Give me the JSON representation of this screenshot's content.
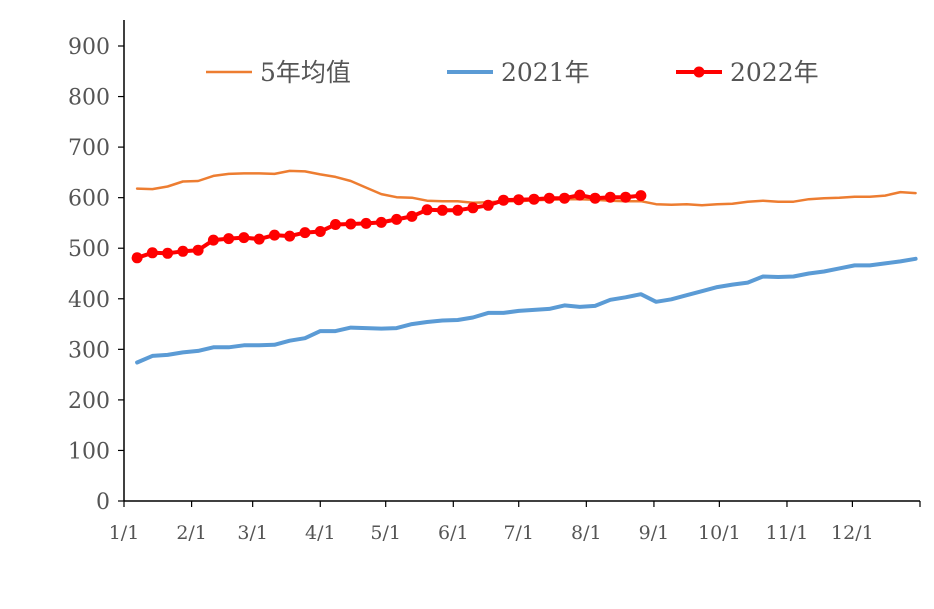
{
  "chart_data": {
    "type": "line",
    "title": "",
    "xlabel": "",
    "ylabel": "",
    "ylim": [
      0,
      900
    ],
    "yticks": [
      0,
      100,
      200,
      300,
      400,
      500,
      600,
      700,
      800,
      900
    ],
    "xlim": [
      0,
      365
    ],
    "xticks": [
      {
        "label": "1/1",
        "day": 0
      },
      {
        "label": "2/1",
        "day": 31
      },
      {
        "label": "3/1",
        "day": 59
      },
      {
        "label": "4/1",
        "day": 90
      },
      {
        "label": "5/1",
        "day": 120
      },
      {
        "label": "6/1",
        "day": 151
      },
      {
        "label": "7/1",
        "day": 181
      },
      {
        "label": "8/1",
        "day": 212
      },
      {
        "label": "9/1",
        "day": 243
      },
      {
        "label": "10/1",
        "day": 273
      },
      {
        "label": "11/1",
        "day": 304
      },
      {
        "label": "12/1",
        "day": 334
      }
    ],
    "grid": false,
    "legend_position": "top",
    "series": [
      {
        "name": "5年均值",
        "color": "#ED7D31",
        "marker": false,
        "points": [
          [
            6,
            618
          ],
          [
            13,
            617
          ],
          [
            20,
            622
          ],
          [
            27,
            632
          ],
          [
            34,
            633
          ],
          [
            41,
            643
          ],
          [
            48,
            647
          ],
          [
            55,
            648
          ],
          [
            62,
            648
          ],
          [
            69,
            647
          ],
          [
            76,
            653
          ],
          [
            83,
            652
          ],
          [
            90,
            646
          ],
          [
            97,
            641
          ],
          [
            104,
            633
          ],
          [
            111,
            620
          ],
          [
            118,
            607
          ],
          [
            125,
            601
          ],
          [
            132,
            600
          ],
          [
            139,
            594
          ],
          [
            146,
            593
          ],
          [
            153,
            593
          ],
          [
            160,
            590
          ],
          [
            167,
            591
          ],
          [
            174,
            593
          ],
          [
            181,
            593
          ],
          [
            188,
            595
          ],
          [
            195,
            596
          ],
          [
            202,
            597
          ],
          [
            209,
            597
          ],
          [
            216,
            596
          ],
          [
            223,
            594
          ],
          [
            230,
            593
          ],
          [
            237,
            593
          ],
          [
            244,
            587
          ],
          [
            251,
            586
          ],
          [
            258,
            587
          ],
          [
            265,
            585
          ],
          [
            272,
            587
          ],
          [
            279,
            588
          ],
          [
            286,
            592
          ],
          [
            293,
            594
          ],
          [
            300,
            592
          ],
          [
            307,
            592
          ],
          [
            314,
            597
          ],
          [
            321,
            599
          ],
          [
            328,
            600
          ],
          [
            335,
            602
          ],
          [
            342,
            602
          ],
          [
            349,
            604
          ],
          [
            356,
            611
          ],
          [
            363,
            609
          ]
        ]
      },
      {
        "name": "2021年",
        "color": "#5B9BD5",
        "marker": false,
        "points": [
          [
            6,
            274
          ],
          [
            13,
            287
          ],
          [
            20,
            289
          ],
          [
            27,
            294
          ],
          [
            34,
            297
          ],
          [
            41,
            304
          ],
          [
            48,
            304
          ],
          [
            55,
            308
          ],
          [
            62,
            308
          ],
          [
            69,
            309
          ],
          [
            76,
            317
          ],
          [
            83,
            322
          ],
          [
            90,
            336
          ],
          [
            97,
            336
          ],
          [
            104,
            343
          ],
          [
            111,
            342
          ],
          [
            118,
            341
          ],
          [
            125,
            342
          ],
          [
            132,
            350
          ],
          [
            139,
            354
          ],
          [
            146,
            357
          ],
          [
            153,
            358
          ],
          [
            160,
            363
          ],
          [
            167,
            372
          ],
          [
            174,
            372
          ],
          [
            181,
            376
          ],
          [
            188,
            378
          ],
          [
            195,
            380
          ],
          [
            202,
            387
          ],
          [
            209,
            384
          ],
          [
            216,
            386
          ],
          [
            223,
            398
          ],
          [
            230,
            403
          ],
          [
            237,
            409
          ],
          [
            244,
            394
          ],
          [
            251,
            399
          ],
          [
            258,
            407
          ],
          [
            265,
            415
          ],
          [
            272,
            423
          ],
          [
            279,
            428
          ],
          [
            286,
            432
          ],
          [
            293,
            444
          ],
          [
            300,
            443
          ],
          [
            307,
            444
          ],
          [
            314,
            450
          ],
          [
            321,
            454
          ],
          [
            328,
            460
          ],
          [
            335,
            466
          ],
          [
            342,
            466
          ],
          [
            349,
            470
          ],
          [
            356,
            474
          ],
          [
            363,
            479
          ]
        ]
      },
      {
        "name": "2022年",
        "color": "#FF0000",
        "marker": true,
        "points": [
          [
            6,
            481
          ],
          [
            13,
            491
          ],
          [
            20,
            490
          ],
          [
            27,
            494
          ],
          [
            34,
            496
          ],
          [
            41,
            516
          ],
          [
            48,
            519
          ],
          [
            55,
            521
          ],
          [
            62,
            518
          ],
          [
            69,
            526
          ],
          [
            76,
            524
          ],
          [
            83,
            531
          ],
          [
            90,
            533
          ],
          [
            97,
            547
          ],
          [
            104,
            548
          ],
          [
            111,
            549
          ],
          [
            118,
            551
          ],
          [
            125,
            557
          ],
          [
            132,
            563
          ],
          [
            139,
            576
          ],
          [
            146,
            575
          ],
          [
            153,
            575
          ],
          [
            160,
            580
          ],
          [
            167,
            585
          ],
          [
            174,
            595
          ],
          [
            181,
            596
          ],
          [
            188,
            597
          ],
          [
            195,
            599
          ],
          [
            202,
            599
          ],
          [
            209,
            605
          ],
          [
            216,
            599
          ],
          [
            223,
            601
          ],
          [
            230,
            601
          ],
          [
            237,
            604
          ]
        ]
      }
    ]
  }
}
